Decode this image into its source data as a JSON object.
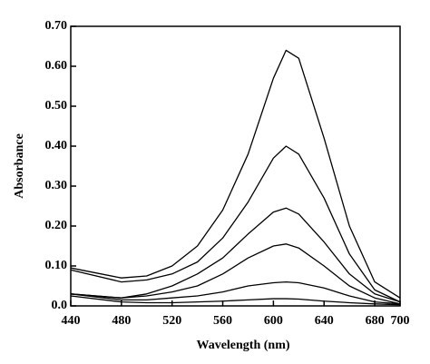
{
  "chart_data": {
    "type": "line",
    "x_label": "Wavelength (nm)",
    "y_label": "Absorbance",
    "x": [
      440,
      480,
      500,
      520,
      540,
      560,
      580,
      600,
      610,
      620,
      640,
      660,
      680,
      700
    ],
    "series": [
      {
        "color": "#000000",
        "values": [
          0.095,
          0.07,
          0.075,
          0.1,
          0.15,
          0.24,
          0.38,
          0.57,
          0.64,
          0.62,
          0.42,
          0.2,
          0.06,
          0.02
        ]
      },
      {
        "color": "#000000",
        "values": [
          0.09,
          0.06,
          0.065,
          0.08,
          0.11,
          0.17,
          0.26,
          0.37,
          0.4,
          0.38,
          0.27,
          0.13,
          0.04,
          0.01
        ]
      },
      {
        "color": "#000000",
        "values": [
          0.03,
          0.02,
          0.03,
          0.05,
          0.08,
          0.12,
          0.18,
          0.235,
          0.245,
          0.23,
          0.16,
          0.08,
          0.03,
          0.01
        ]
      },
      {
        "color": "#000000",
        "values": [
          0.03,
          0.02,
          0.025,
          0.035,
          0.05,
          0.08,
          0.12,
          0.15,
          0.155,
          0.145,
          0.1,
          0.05,
          0.02,
          0.005
        ]
      },
      {
        "color": "#000000",
        "values": [
          0.03,
          0.015,
          0.015,
          0.02,
          0.025,
          0.035,
          0.05,
          0.058,
          0.06,
          0.058,
          0.045,
          0.025,
          0.01,
          0.005
        ]
      },
      {
        "color": "#000000",
        "values": [
          0.025,
          0.01,
          0.008,
          0.008,
          0.01,
          0.012,
          0.015,
          0.018,
          0.018,
          0.017,
          0.012,
          0.008,
          0.005,
          0.003
        ]
      }
    ],
    "xlim": [
      440,
      700
    ],
    "xticks": [
      440,
      480,
      520,
      560,
      600,
      640,
      680,
      700
    ],
    "ylim": [
      0,
      0.7
    ],
    "yticks": [
      {
        "value": 0,
        "label": "0.0"
      },
      {
        "value": 0.1,
        "label": "0.10"
      },
      {
        "value": 0.2,
        "label": "0.20"
      },
      {
        "value": 0.3,
        "label": "0.30"
      },
      {
        "value": 0.4,
        "label": "0.40"
      },
      {
        "value": 0.5,
        "label": "0.50"
      },
      {
        "value": 0.6,
        "label": "0.60"
      },
      {
        "value": 0.7,
        "label": "0.70"
      }
    ],
    "grid": false
  }
}
